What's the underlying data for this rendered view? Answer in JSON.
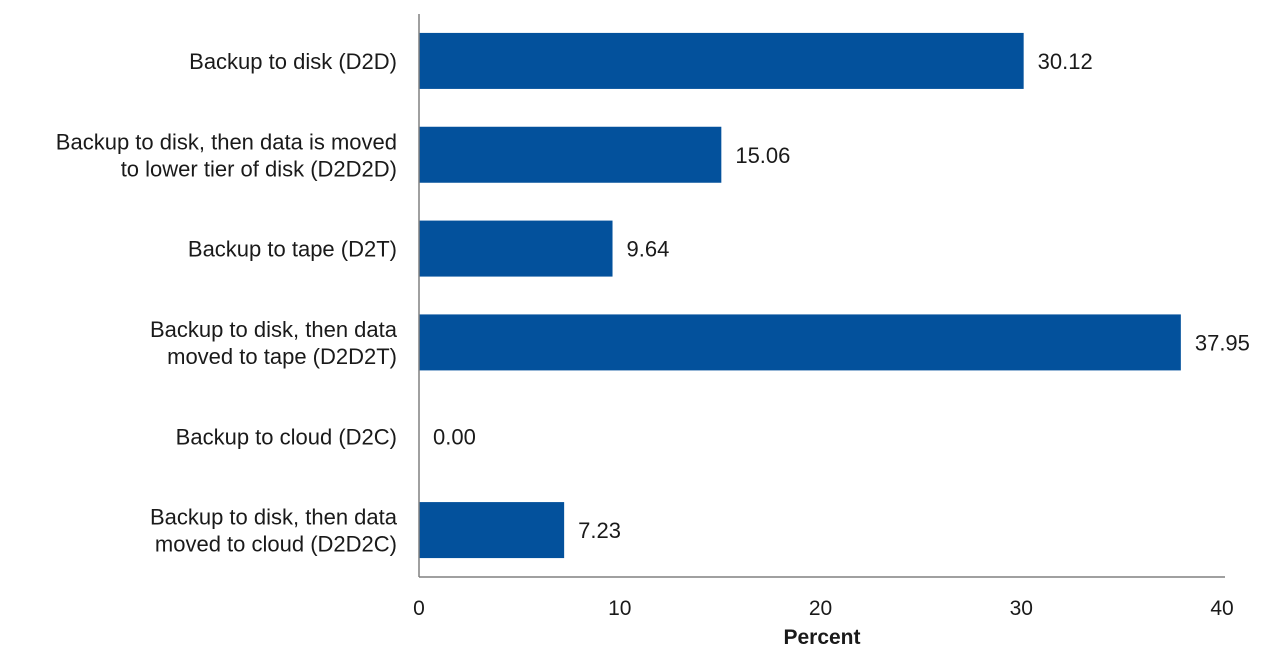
{
  "chart_data": {
    "type": "bar",
    "orientation": "horizontal",
    "categories": [
      [
        "Backup to disk (D2D)"
      ],
      [
        "Backup to disk, then data is moved",
        "to lower tier of disk (D2D2D)"
      ],
      [
        "Backup to tape (D2T)"
      ],
      [
        "Backup to disk, then data",
        "moved to tape (D2D2T)"
      ],
      [
        "Backup to cloud (D2C)"
      ],
      [
        "Backup to disk, then data",
        "moved to cloud (D2D2C)"
      ]
    ],
    "values": [
      30.12,
      15.06,
      9.64,
      37.95,
      0.0,
      7.23
    ],
    "value_labels": [
      "30.12",
      "15.06",
      "9.64",
      "37.95",
      "0.00",
      "7.23"
    ],
    "xlabel": "Percent",
    "ylabel": "",
    "xlim": [
      0,
      40
    ],
    "xticks": [
      "0",
      "10",
      "20",
      "30",
      "40"
    ],
    "bar_color": "#03519c",
    "grid": false,
    "legend": "none"
  }
}
